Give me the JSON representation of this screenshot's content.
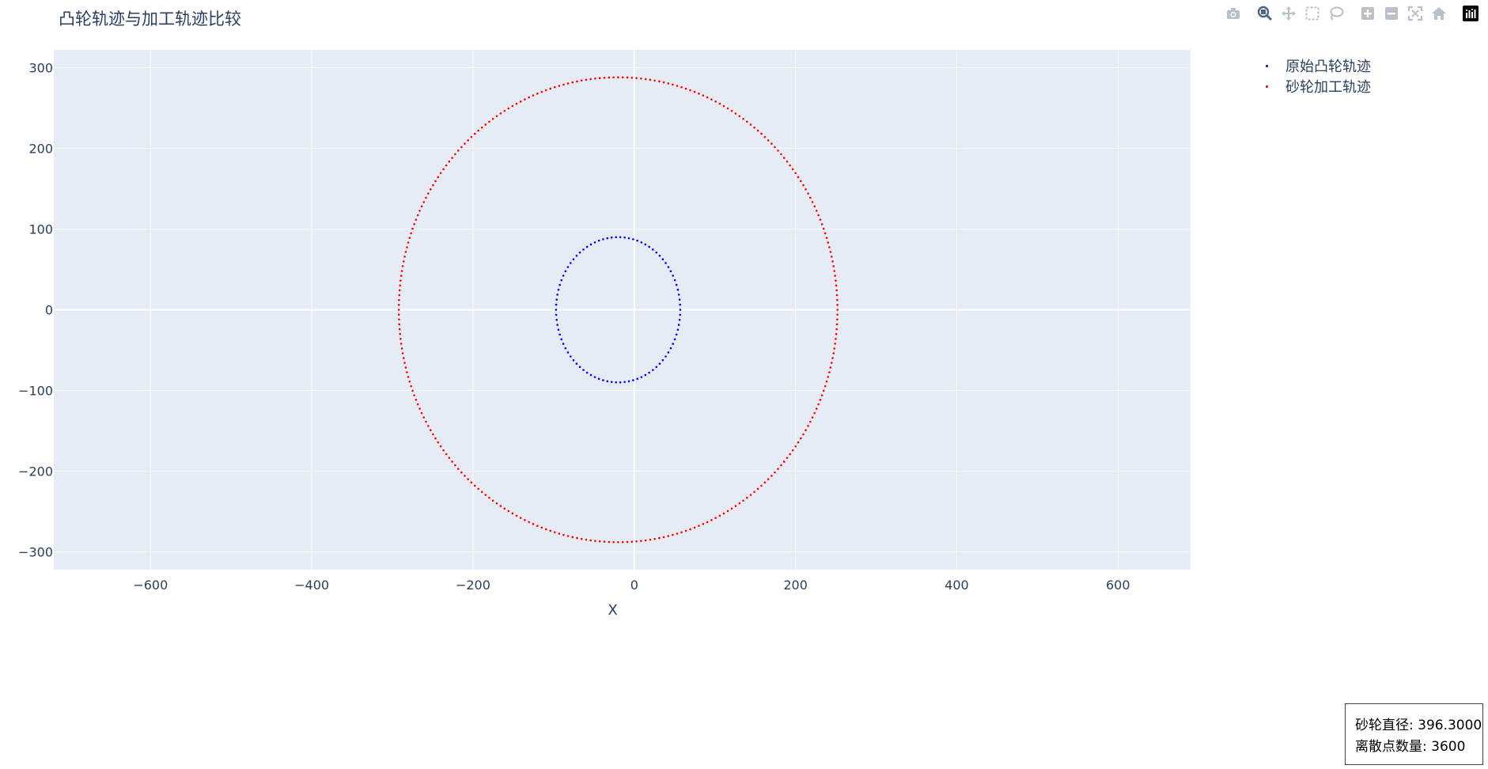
{
  "title": "凸轮轨迹与加工轨迹比较",
  "modebar": [
    {
      "name": "camera-icon",
      "title": "Download plot as a png"
    },
    {
      "name": "zoom-icon",
      "title": "Zoom"
    },
    {
      "name": "pan-icon",
      "title": "Pan"
    },
    {
      "name": "box-select-icon",
      "title": "Box Select"
    },
    {
      "name": "lasso-select-icon",
      "title": "Lasso Select"
    },
    {
      "name": "zoom-in-icon",
      "title": "Zoom in"
    },
    {
      "name": "zoom-out-icon",
      "title": "Zoom out"
    },
    {
      "name": "autoscale-icon",
      "title": "Autoscale"
    },
    {
      "name": "reset-axes-icon",
      "title": "Reset axes"
    },
    {
      "name": "plotly-logo-icon",
      "title": "Produced with Plotly"
    }
  ],
  "annotation": {
    "line1": "砂轮直径: 396.3000",
    "line2": "离散点数量: 3600"
  },
  "chart_data": {
    "type": "scatter",
    "title": "凸轮轨迹与加工轨迹比较",
    "xlabel": "X",
    "ylabel": "",
    "xlim": [
      -720,
      690
    ],
    "ylim": [
      -322,
      322
    ],
    "xticks": [
      -600,
      -400,
      -200,
      0,
      200,
      400,
      600
    ],
    "yticks": [
      -300,
      -200,
      -100,
      0,
      100,
      200,
      300
    ],
    "xtick_labels": [
      "−600",
      "−400",
      "−200",
      "0",
      "200",
      "400",
      "600"
    ],
    "ytick_labels": [
      "−300",
      "−200",
      "−100",
      "0",
      "100",
      "200",
      "300"
    ],
    "grid": true,
    "legend_position": "top-right",
    "plot_bgcolor": "#e5ecf6",
    "series": [
      {
        "name": "原始凸轮轨迹",
        "color": "#0000ff",
        "shape": "ellipse",
        "center": [
          -20,
          0
        ],
        "radius_x": 77,
        "radius_y": 90,
        "points": 90
      },
      {
        "name": "砂轮加工轨迹",
        "color": "#ff0000",
        "shape": "ellipse",
        "center": [
          -20,
          0
        ],
        "radius_x": 272,
        "radius_y": 288,
        "points": 300
      }
    ]
  }
}
